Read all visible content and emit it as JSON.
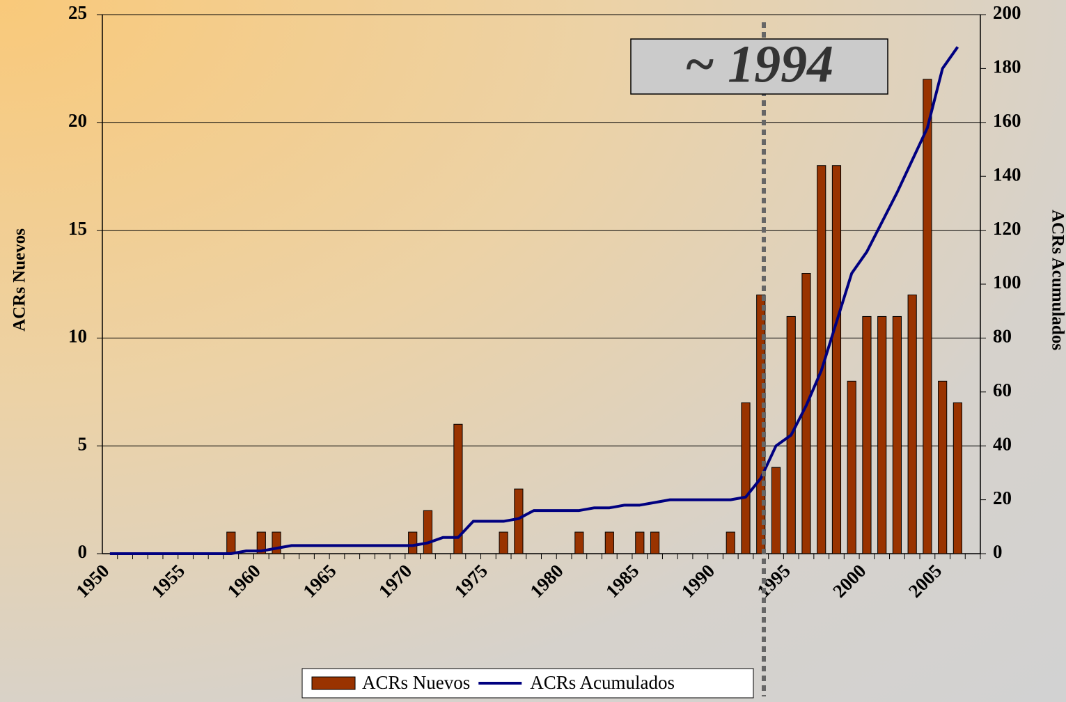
{
  "chart_data": {
    "type": "bar_line",
    "categories": [
      "1950",
      null,
      null,
      null,
      null,
      "1955",
      null,
      null,
      null,
      null,
      "1960",
      null,
      null,
      null,
      null,
      "1965",
      null,
      null,
      null,
      null,
      "1970",
      null,
      null,
      null,
      null,
      "1975",
      null,
      null,
      null,
      null,
      "1980",
      null,
      null,
      null,
      null,
      "1985",
      null,
      null,
      null,
      null,
      "1990",
      null,
      null,
      null,
      null,
      "1995",
      null,
      null,
      null,
      null,
      "2000",
      null,
      null,
      null,
      null,
      "2005",
      null,
      null
    ],
    "series": [
      {
        "name": "ACRs Nuevos",
        "type": "bar",
        "axis": "y",
        "color": "#993300",
        "values": [
          0,
          0,
          0,
          0,
          0,
          0,
          0,
          0,
          1,
          0,
          1,
          1,
          0,
          0,
          0,
          0,
          0,
          0,
          0,
          0,
          1,
          2,
          0,
          6,
          0,
          0,
          1,
          3,
          0,
          0,
          0,
          1,
          0,
          1,
          0,
          1,
          1,
          0,
          0,
          0,
          0,
          1,
          7,
          12,
          4,
          11,
          13,
          18,
          18,
          8,
          11,
          11,
          11,
          12,
          22,
          8,
          7,
          0
        ]
      },
      {
        "name": "ACRs Acumulados",
        "type": "line",
        "axis": "y2",
        "color": "#000080",
        "values": [
          0,
          0,
          0,
          0,
          0,
          0,
          0,
          0,
          0,
          1,
          1,
          2,
          3,
          3,
          3,
          3,
          3,
          3,
          3,
          3,
          3,
          4,
          6,
          6,
          12,
          12,
          12,
          13,
          16,
          16,
          16,
          16,
          17,
          17,
          18,
          18,
          19,
          20,
          20,
          20,
          20,
          20,
          21,
          28,
          40,
          44,
          55,
          68,
          86,
          104,
          112,
          123,
          134,
          146,
          158,
          180,
          188,
          null
        ]
      }
    ],
    "ylabel": "ACRs Nuevos",
    "y2label": "ACRs Acumulados",
    "ylim": [
      0,
      25
    ],
    "yticks": [
      0,
      5,
      10,
      15,
      20,
      25
    ],
    "y2lim": [
      0,
      200
    ],
    "y2ticks": [
      0,
      20,
      40,
      60,
      80,
      100,
      120,
      140,
      160,
      180,
      200
    ],
    "annotation": "~ 1994",
    "grid": true,
    "legend": "bottom"
  }
}
